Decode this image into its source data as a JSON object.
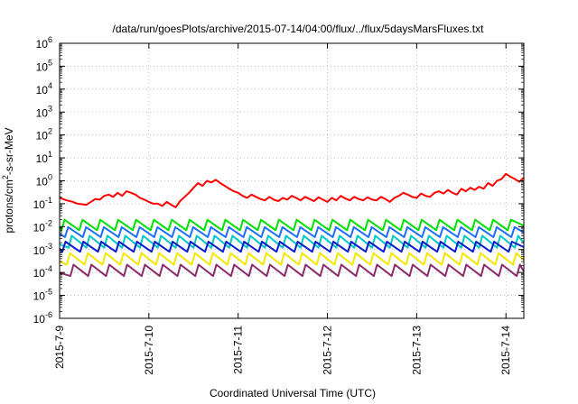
{
  "chart_data": {
    "type": "line",
    "title": "/data/run/goesPlots/archive/2015-07-14/04:00/flux/../flux/5daysMarsFluxes.txt",
    "xlabel": "Coordinated Universal Time (UTC)",
    "ylabel_main": "protons/cm",
    "ylabel_sup": "2",
    "ylabel_rest": "-s-sr-MeV",
    "yscale": "log",
    "ylim_exp": [
      -6,
      6
    ],
    "y_ticks": [
      {
        "exp": -6,
        "base": "10",
        "sup": "-6"
      },
      {
        "exp": -5,
        "base": "10",
        "sup": "-5"
      },
      {
        "exp": -4,
        "base": "10",
        "sup": "-4"
      },
      {
        "exp": -3,
        "base": "10",
        "sup": "-3"
      },
      {
        "exp": -2,
        "base": "10",
        "sup": "-2"
      },
      {
        "exp": -1,
        "base": "10",
        "sup": "-1"
      },
      {
        "exp": 0,
        "base": "10",
        "sup": "0"
      },
      {
        "exp": 1,
        "base": "10",
        "sup": "1"
      },
      {
        "exp": 2,
        "base": "10",
        "sup": "2"
      },
      {
        "exp": 3,
        "base": "10",
        "sup": "3"
      },
      {
        "exp": 4,
        "base": "10",
        "sup": "4"
      },
      {
        "exp": 5,
        "base": "10",
        "sup": "5"
      },
      {
        "exp": 6,
        "base": "10",
        "sup": "6"
      }
    ],
    "x_range_days": [
      0,
      5.2
    ],
    "x_ticks": [
      {
        "day": 0,
        "label": "2015-7-9"
      },
      {
        "day": 1,
        "label": "2015-7-10"
      },
      {
        "day": 2,
        "label": "2015-7-11"
      },
      {
        "day": 3,
        "label": "2015-7-12"
      },
      {
        "day": 4,
        "label": "2015-7-13"
      },
      {
        "day": 5,
        "label": "2015-7-14"
      }
    ],
    "grid": true,
    "series": [
      {
        "color": "#ff0000",
        "sawtooth": false,
        "x": [
          0,
          0.08,
          0.15,
          0.2,
          0.3,
          0.4,
          0.45,
          0.5,
          0.55,
          0.6,
          0.65,
          0.7,
          0.75,
          0.8,
          0.85,
          0.9,
          0.95,
          1.0,
          1.05,
          1.1,
          1.15,
          1.2,
          1.25,
          1.3,
          1.35,
          1.4,
          1.45,
          1.5,
          1.55,
          1.6,
          1.65,
          1.7,
          1.75,
          1.8,
          1.85,
          1.9,
          1.95,
          2.0,
          2.05,
          2.1,
          2.15,
          2.2,
          2.25,
          2.3,
          2.35,
          2.4,
          2.45,
          2.5,
          2.55,
          2.6,
          2.65,
          2.7,
          2.75,
          2.8,
          2.85,
          2.9,
          2.95,
          3.0,
          3.05,
          3.1,
          3.15,
          3.2,
          3.25,
          3.3,
          3.35,
          3.4,
          3.45,
          3.5,
          3.55,
          3.6,
          3.65,
          3.7,
          3.75,
          3.8,
          3.85,
          3.9,
          3.95,
          4.0,
          4.05,
          4.1,
          4.15,
          4.2,
          4.25,
          4.3,
          4.35,
          4.4,
          4.45,
          4.5,
          4.55,
          4.6,
          4.65,
          4.7,
          4.75,
          4.8,
          4.85,
          4.9,
          4.95,
          5.0,
          5.05,
          5.1,
          5.15,
          5.2
        ],
        "y": [
          0.18,
          0.14,
          0.12,
          0.1,
          0.09,
          0.16,
          0.15,
          0.22,
          0.25,
          0.2,
          0.3,
          0.22,
          0.35,
          0.3,
          0.25,
          0.18,
          0.15,
          0.12,
          0.1,
          0.1,
          0.08,
          0.12,
          0.09,
          0.07,
          0.13,
          0.2,
          0.3,
          0.5,
          0.8,
          0.6,
          1.0,
          0.85,
          1.1,
          0.8,
          0.6,
          0.45,
          0.35,
          0.3,
          0.22,
          0.18,
          0.25,
          0.2,
          0.16,
          0.14,
          0.2,
          0.15,
          0.13,
          0.18,
          0.15,
          0.22,
          0.18,
          0.14,
          0.2,
          0.16,
          0.13,
          0.19,
          0.15,
          0.12,
          0.18,
          0.14,
          0.22,
          0.17,
          0.14,
          0.2,
          0.16,
          0.14,
          0.19,
          0.15,
          0.14,
          0.2,
          0.16,
          0.12,
          0.18,
          0.22,
          0.3,
          0.25,
          0.2,
          0.18,
          0.28,
          0.22,
          0.2,
          0.3,
          0.35,
          0.28,
          0.4,
          0.3,
          0.25,
          0.45,
          0.35,
          0.5,
          0.4,
          0.55,
          0.45,
          0.8,
          0.6,
          1.0,
          1.2,
          2.0,
          1.5,
          1.2,
          0.9,
          1.4
        ]
      },
      {
        "color": "#00e000",
        "sawtooth": true,
        "low": 0.007,
        "high": 0.02,
        "period": 0.2,
        "phase": 0.02
      },
      {
        "color": "#1e6fff",
        "sawtooth": true,
        "low": 0.0035,
        "high": 0.0095,
        "period": 0.2,
        "phase": 0.06
      },
      {
        "color": "#00c8c8",
        "sawtooth": true,
        "low": 0.0012,
        "high": 0.004,
        "period": 0.2,
        "phase": 0.1
      },
      {
        "color": "#0a1ccc",
        "sawtooth": true,
        "low": 0.0008,
        "high": 0.0022,
        "period": 0.2,
        "phase": 0.03
      },
      {
        "color": "#f5e600",
        "sawtooth": true,
        "low": 0.00022,
        "high": 0.0007,
        "period": 0.2,
        "phase": 0.08
      },
      {
        "color": "#8b2a6a",
        "sawtooth": true,
        "low": 7e-05,
        "high": 0.00022,
        "period": 0.2,
        "phase": 0.12
      }
    ]
  }
}
